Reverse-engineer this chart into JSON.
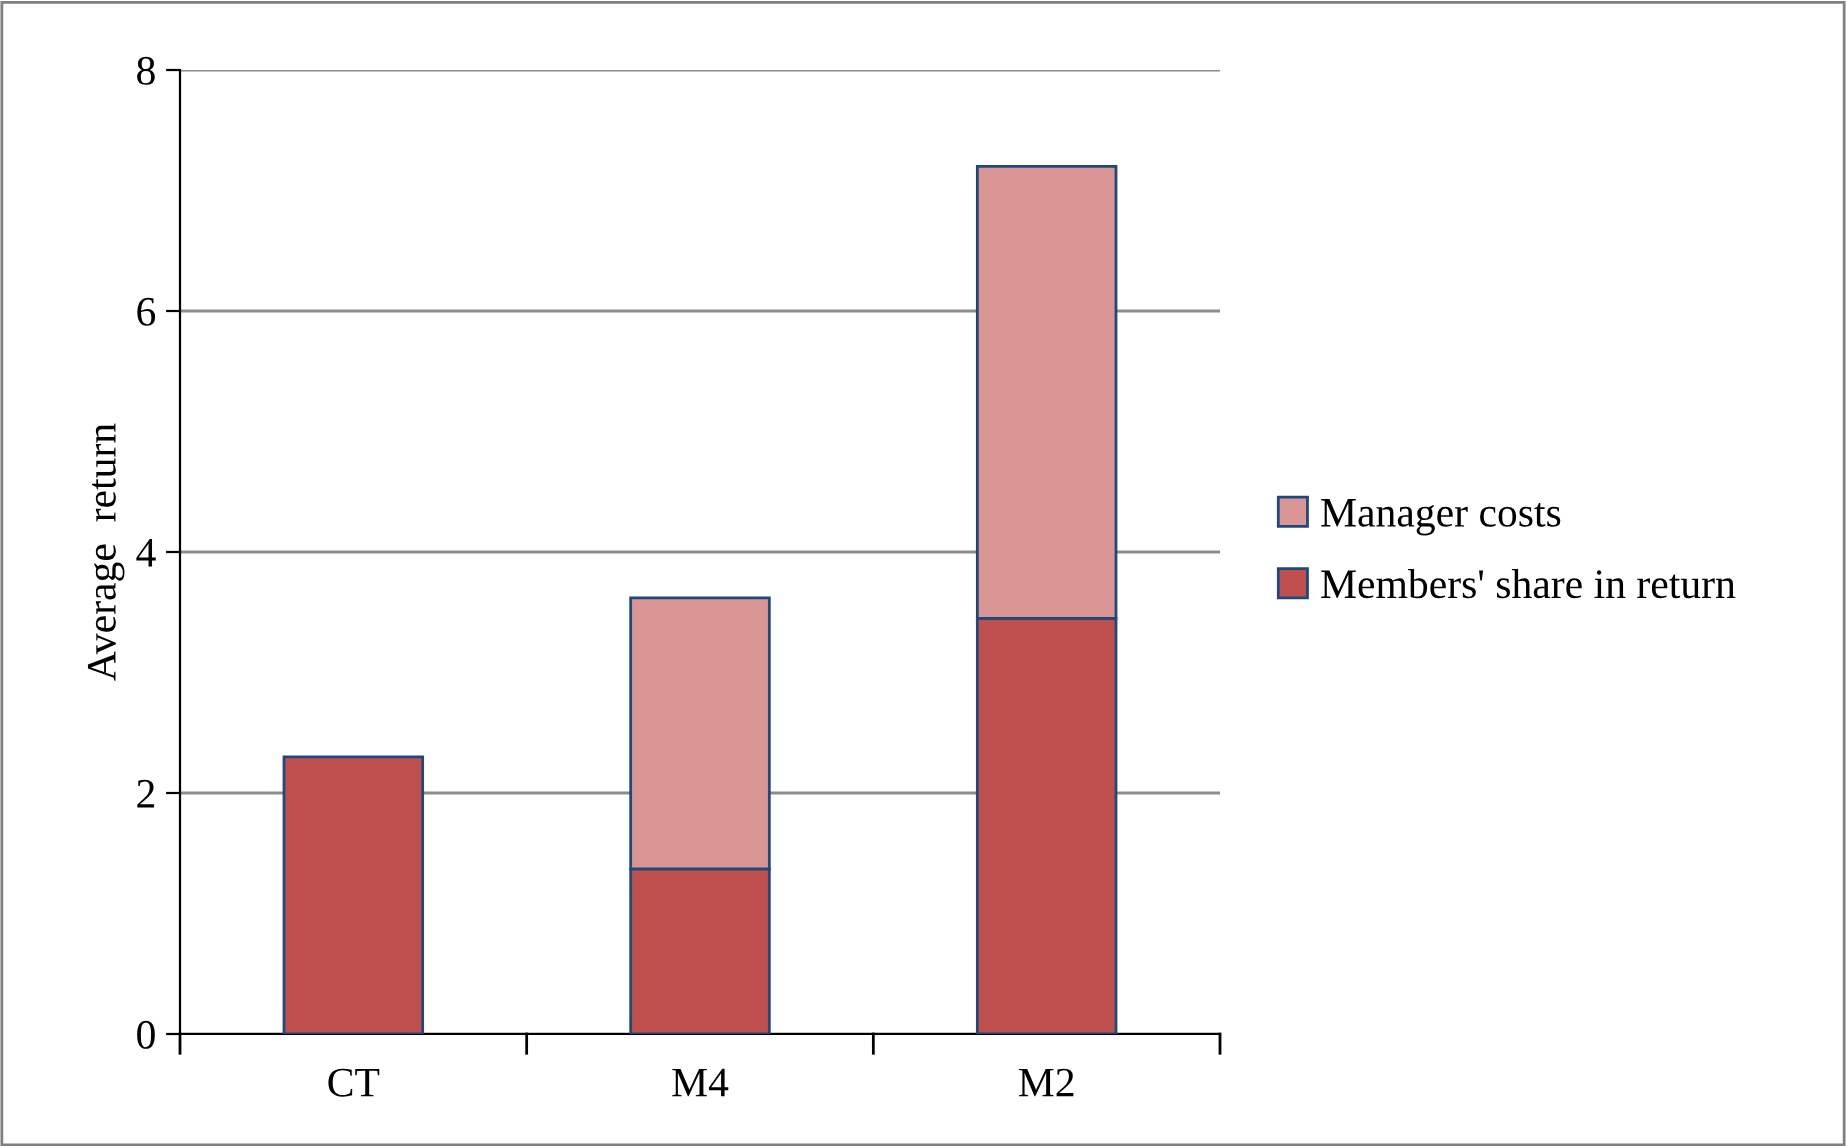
{
  "chart_data": {
    "type": "bar",
    "stacked": true,
    "ylabel": "Average  return",
    "categories": [
      "CT",
      "M4",
      "M2"
    ],
    "series": [
      {
        "name": "Members' share in return",
        "color": "#c0504d",
        "values": [
          2.3,
          1.37,
          3.45
        ]
      },
      {
        "name": "Manager costs",
        "color": "#d99694",
        "values": [
          0,
          2.25,
          3.75
        ]
      }
    ],
    "ylim": [
      0,
      8
    ],
    "yticks": [
      0,
      2,
      4,
      6,
      8
    ],
    "grid": "y",
    "legend": "right"
  }
}
